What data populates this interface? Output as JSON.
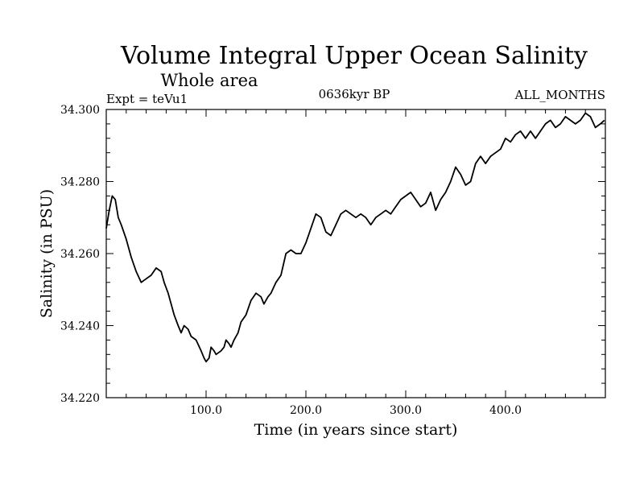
{
  "chart_data": {
    "type": "line",
    "title": "Volume Integral Upper Ocean Salinity",
    "subtitle": "Whole area",
    "header_left": "Expt = teVu1",
    "header_center": "0636kyr BP",
    "header_right": "ALL_MONTHS",
    "xlabel": "Time (in years since start)",
    "ylabel": "Salinity (in PSU)",
    "xlim": [
      0,
      500
    ],
    "ylim": [
      34.22,
      34.3
    ],
    "xticks": [
      100,
      200,
      300,
      400
    ],
    "xtick_labels": [
      "100.0",
      "200.0",
      "300.0",
      "400.0"
    ],
    "yticks": [
      34.22,
      34.24,
      34.26,
      34.28,
      34.3
    ],
    "ytick_labels": [
      "34.220",
      "34.240",
      "34.260",
      "34.280",
      "34.300"
    ],
    "grid": false,
    "series": [
      {
        "color": "#000000",
        "x": [
          0,
          3,
          6,
          9,
          12,
          15,
          20,
          25,
          30,
          35,
          40,
          45,
          50,
          55,
          58,
          62,
          65,
          68,
          72,
          75,
          78,
          82,
          85,
          90,
          95,
          98,
          100,
          103,
          105,
          108,
          110,
          115,
          118,
          120,
          123,
          125,
          128,
          132,
          135,
          140,
          145,
          150,
          155,
          158,
          162,
          165,
          170,
          175,
          180,
          185,
          190,
          195,
          200,
          205,
          210,
          215,
          220,
          225,
          230,
          235,
          240,
          245,
          250,
          255,
          260,
          265,
          270,
          275,
          280,
          285,
          290,
          295,
          300,
          305,
          310,
          315,
          320,
          325,
          330,
          335,
          340,
          345,
          350,
          355,
          360,
          365,
          370,
          375,
          380,
          385,
          390,
          395,
          400,
          405,
          410,
          415,
          420,
          425,
          430,
          435,
          440,
          445,
          450,
          455,
          460,
          465,
          470,
          475,
          480,
          485,
          490,
          495,
          499
        ],
        "y": [
          34.267,
          34.272,
          34.276,
          34.275,
          34.27,
          34.268,
          34.264,
          34.259,
          34.255,
          34.252,
          34.253,
          34.254,
          34.256,
          34.255,
          34.252,
          34.249,
          34.246,
          34.243,
          34.24,
          34.238,
          34.24,
          34.239,
          34.237,
          34.236,
          34.233,
          34.231,
          34.23,
          34.231,
          34.234,
          34.233,
          34.232,
          34.233,
          34.234,
          34.236,
          34.235,
          34.234,
          34.236,
          34.238,
          34.241,
          34.243,
          34.247,
          34.249,
          34.248,
          34.246,
          34.248,
          34.249,
          34.252,
          34.254,
          34.26,
          34.261,
          34.26,
          34.26,
          34.263,
          34.267,
          34.271,
          34.27,
          34.266,
          34.265,
          34.268,
          34.271,
          34.272,
          34.271,
          34.27,
          34.271,
          34.27,
          34.268,
          34.27,
          34.271,
          34.272,
          34.271,
          34.273,
          34.275,
          34.276,
          34.277,
          34.275,
          34.273,
          34.274,
          34.277,
          34.272,
          34.275,
          34.277,
          34.28,
          34.284,
          34.282,
          34.279,
          34.28,
          34.285,
          34.287,
          34.285,
          34.287,
          34.288,
          34.289,
          34.292,
          34.291,
          34.293,
          34.294,
          34.292,
          34.294,
          34.292,
          34.294,
          34.296,
          34.297,
          34.295,
          34.296,
          34.298,
          34.297,
          34.296,
          34.297,
          34.299,
          34.298,
          34.295,
          34.296,
          34.297
        ]
      }
    ]
  }
}
